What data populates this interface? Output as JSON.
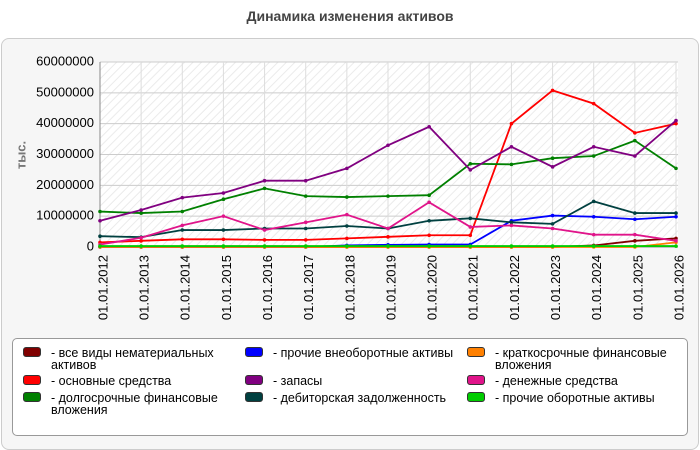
{
  "chart_data": {
    "type": "line",
    "title": "Динамика изменения активов",
    "y_label": "тыс.",
    "categories": [
      "01.01.2012",
      "01.01.2013",
      "01.01.2014",
      "01.01.2015",
      "01.01.2016",
      "01.01.2017",
      "01.01.2018",
      "01.01.2019",
      "01.01.2020",
      "01.01.2021",
      "01.01.2022",
      "01.01.2023",
      "01.01.2024",
      "01.01.2025",
      "01.01.2026"
    ],
    "ylim": [
      0,
      60000000
    ],
    "yticks": [
      0,
      10000000,
      20000000,
      30000000,
      40000000,
      50000000,
      60000000
    ],
    "grid": true,
    "series": [
      {
        "name": "- все виды нематериальных активов",
        "color": "#800000",
        "values": [
          0,
          0,
          0,
          0,
          0,
          0,
          0,
          0,
          0,
          0,
          0,
          0,
          500000,
          2000000,
          2800000
        ]
      },
      {
        "name": "- основные средства",
        "color": "#ff0000",
        "values": [
          1500000,
          2000000,
          2500000,
          2500000,
          2300000,
          2300000,
          2800000,
          3300000,
          3800000,
          3800000,
          40000000,
          50800000,
          46500000,
          37000000,
          40000000
        ]
      },
      {
        "name": "- долгосрочные финансовые вложения",
        "color": "#008000",
        "values": [
          11500000,
          11000000,
          11500000,
          15500000,
          19000000,
          16500000,
          16200000,
          16500000,
          16800000,
          27000000,
          26800000,
          28800000,
          29500000,
          34500000,
          25500000
        ]
      },
      {
        "name": "- прочие внеоборотные активы",
        "color": "#0000ff",
        "values": [
          0,
          0,
          0,
          0,
          0,
          0,
          500000,
          700000,
          800000,
          800000,
          8500000,
          10200000,
          9800000,
          9000000,
          9800000
        ]
      },
      {
        "name": "- запасы",
        "color": "#800080",
        "values": [
          8500000,
          12000000,
          16000000,
          17500000,
          21500000,
          21500000,
          25500000,
          33000000,
          39000000,
          25000000,
          32500000,
          26000000,
          32500000,
          29500000,
          41000000
        ]
      },
      {
        "name": "- дебиторская задолженность",
        "color": "#004040",
        "values": [
          3500000,
          3200000,
          5500000,
          5500000,
          6000000,
          6000000,
          6800000,
          6000000,
          8500000,
          9300000,
          8000000,
          7500000,
          14800000,
          11000000,
          11000000
        ]
      },
      {
        "name": "- краткосрочные финансовые вложения",
        "color": "#ff8000",
        "values": [
          0,
          0,
          0,
          0,
          0,
          0,
          0,
          0,
          0,
          0,
          0,
          0,
          0,
          0,
          1500000
        ]
      },
      {
        "name": "- денежные средства",
        "color": "#e0148a",
        "values": [
          800000,
          3000000,
          7000000,
          10000000,
          5500000,
          8000000,
          10500000,
          6000000,
          14500000,
          6500000,
          7000000,
          6000000,
          4000000,
          4000000,
          2000000
        ]
      },
      {
        "name": "- прочие оборотные активы",
        "color": "#00cc00",
        "values": [
          300000,
          300000,
          300000,
          300000,
          300000,
          300000,
          300000,
          300000,
          300000,
          300000,
          300000,
          300000,
          300000,
          300000,
          300000
        ]
      }
    ]
  }
}
